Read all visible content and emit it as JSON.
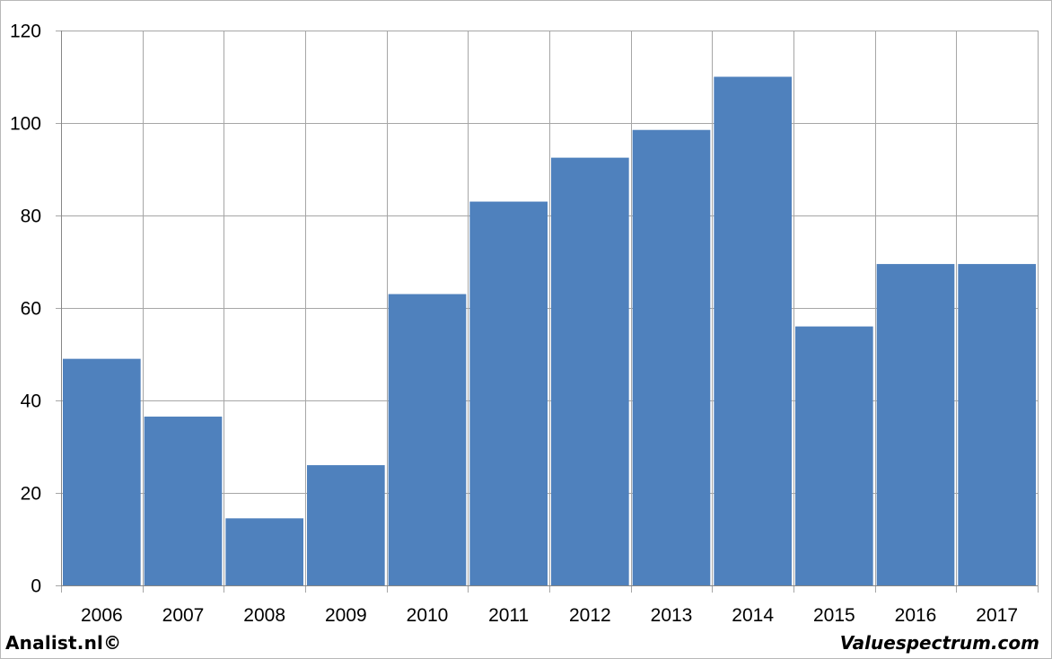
{
  "chart_data": {
    "type": "bar",
    "categories": [
      "2006",
      "2007",
      "2008",
      "2009",
      "2010",
      "2011",
      "2012",
      "2013",
      "2014",
      "2015",
      "2016",
      "2017"
    ],
    "values": [
      49,
      36.5,
      14.5,
      26,
      63,
      83,
      92.5,
      98.5,
      110,
      56,
      69.5,
      69.5
    ],
    "yticks": [
      "0",
      "20",
      "40",
      "60",
      "80",
      "100",
      "120"
    ],
    "ylim": [
      0,
      120
    ],
    "grid": true,
    "bar_color": "#4f81bd",
    "grid_color": "#a6a6a6",
    "title": "",
    "xlabel": "",
    "ylabel": ""
  },
  "footer": {
    "left": "Analist.nl©",
    "right": "Valuespectrum.com"
  }
}
